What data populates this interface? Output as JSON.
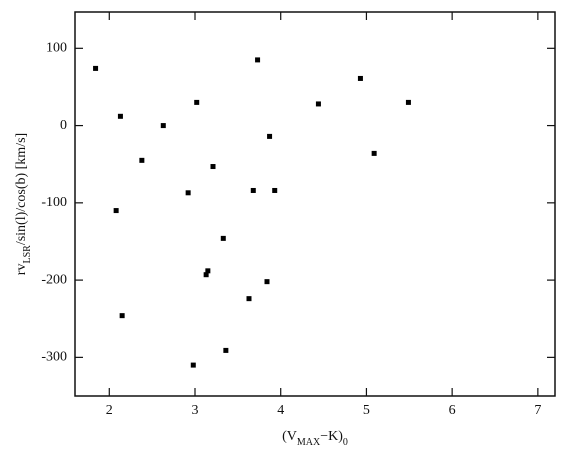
{
  "chart_data": {
    "type": "scatter",
    "xlabel": [
      {
        "text": "(V"
      },
      {
        "text": "MAX",
        "sub": true
      },
      {
        "text": "−K)"
      },
      {
        "text": "0",
        "sub": true
      }
    ],
    "ylabel": [
      {
        "text": "rv"
      },
      {
        "text": "LSR",
        "sub": true
      },
      {
        "text": "/sin(l)/cos(b)  [km/s]"
      }
    ],
    "color": "#000000",
    "xlim": [
      1.6,
      7.2
    ],
    "xticks": [
      2,
      3,
      4,
      5,
      6,
      7
    ],
    "ylim": [
      -350,
      147
    ],
    "yticks": [
      -300,
      -200,
      -100,
      0,
      100
    ],
    "x": [
      1.84,
      2.13,
      2.63,
      2.38,
      2.08,
      2.15,
      3.02,
      2.92,
      3.21,
      3.73,
      3.87,
      3.68,
      3.93,
      3.33,
      3.15,
      3.13,
      3.84,
      3.63,
      2.98,
      3.36,
      4.44,
      4.93,
      5.49,
      5.09
    ],
    "y": [
      74,
      12,
      0,
      -45,
      -110,
      -246,
      30,
      -87,
      -53,
      85,
      -14,
      -84,
      -84,
      -146,
      -188,
      -193,
      -202,
      -224,
      -310,
      -291,
      28,
      61,
      30,
      -36
    ]
  }
}
